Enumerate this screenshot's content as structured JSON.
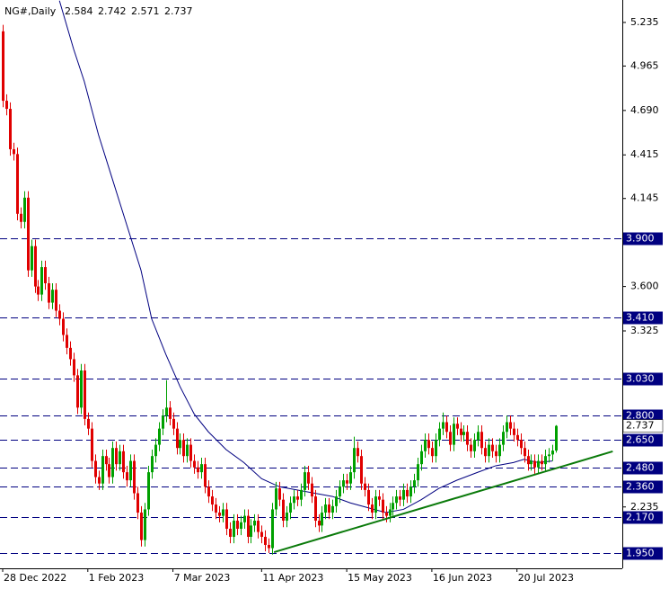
{
  "chart_data": {
    "type": "candlestick",
    "title": "NG#,Daily",
    "xlim": [
      -0.76,
      174.7
    ],
    "ylim": [
      1.855,
      5.374
    ],
    "xticks": [
      {
        "value": 0,
        "label": "28 Dec 2022"
      },
      {
        "value": 24,
        "label": "1 Feb 2023"
      },
      {
        "value": 48,
        "label": "7 Mar 2023"
      },
      {
        "value": 73,
        "label": "11 Apr 2023"
      },
      {
        "value": 97,
        "label": "15 May 2023"
      },
      {
        "value": 121,
        "label": "16 Jun 2023"
      },
      {
        "value": 145,
        "label": "20 Jul 2023"
      }
    ],
    "yticks": [
      5.235,
      4.965,
      {
        "value": 4.69,
        "label": "4.690"
      },
      4.415,
      4.145,
      {
        "value": 3.6,
        "label": "3.600"
      },
      3.325,
      2.235
    ],
    "up_color": "#00a000",
    "down_color": "#e00000",
    "open": [
      5.18,
      4.75,
      4.7,
      4.45,
      4.42,
      4.05,
      4.0,
      4.15,
      3.7,
      3.85,
      3.6,
      3.55,
      3.72,
      3.62,
      3.5,
      3.58,
      3.45,
      3.4,
      3.3,
      3.22,
      3.15,
      3.05,
      2.85,
      3.08,
      2.78,
      2.72,
      2.52,
      2.42,
      2.38,
      2.55,
      2.5,
      2.42,
      2.6,
      2.5,
      2.58,
      2.45,
      2.4,
      2.52,
      2.32,
      2.2,
      2.03,
      2.22,
      2.45,
      2.55,
      2.62,
      2.72,
      2.8,
      2.85,
      2.78,
      2.72,
      2.6,
      2.65,
      2.55,
      2.62,
      2.52,
      2.48,
      2.45,
      2.5,
      2.36,
      2.3,
      2.25,
      2.2,
      2.18,
      2.22,
      2.1,
      2.05,
      2.15,
      2.1,
      2.14,
      2.18,
      2.05,
      2.12,
      2.15,
      2.08,
      2.05,
      2.0,
      1.98,
      2.22,
      2.35,
      2.28,
      2.15,
      2.2,
      2.26,
      2.3,
      2.28,
      2.34,
      2.45,
      2.38,
      2.3,
      2.15,
      2.12,
      2.2,
      2.25,
      2.2,
      2.24,
      2.3,
      2.36,
      2.4,
      2.38,
      2.45,
      2.6,
      2.55,
      2.38,
      2.34,
      2.25,
      2.2,
      2.3,
      2.28,
      2.2,
      2.18,
      2.22,
      2.26,
      2.3,
      2.28,
      2.34,
      2.3,
      2.36,
      2.4,
      2.5,
      2.58,
      2.65,
      2.6,
      2.55,
      2.65,
      2.72,
      2.76,
      2.7,
      2.62,
      2.75,
      2.72,
      2.68,
      2.7,
      2.62,
      2.58,
      2.65,
      2.7,
      2.6,
      2.55,
      2.62,
      2.58,
      2.55,
      2.62,
      2.7,
      2.76,
      2.72,
      2.68,
      2.65,
      2.6,
      2.55,
      2.5,
      2.52,
      2.48,
      2.52,
      2.5,
      2.55,
      2.56,
      2.584
    ],
    "high": [
      5.22,
      4.79,
      4.74,
      4.49,
      4.46,
      4.09,
      4.19,
      4.19,
      3.89,
      3.89,
      3.64,
      3.76,
      3.76,
      3.66,
      3.62,
      3.62,
      3.49,
      3.44,
      3.34,
      3.26,
      3.19,
      3.09,
      3.12,
      3.12,
      2.82,
      2.76,
      2.56,
      2.46,
      2.59,
      2.59,
      2.54,
      2.64,
      2.64,
      2.62,
      2.62,
      2.49,
      2.56,
      2.56,
      2.36,
      2.24,
      2.26,
      2.49,
      2.59,
      2.66,
      2.76,
      2.84,
      3.02,
      2.89,
      2.82,
      2.76,
      2.69,
      2.69,
      2.66,
      2.66,
      2.56,
      2.52,
      2.54,
      2.54,
      2.4,
      2.34,
      2.29,
      2.24,
      2.26,
      2.26,
      2.14,
      2.19,
      2.19,
      2.18,
      2.22,
      2.22,
      2.16,
      2.19,
      2.19,
      2.12,
      2.09,
      2.04,
      2.26,
      2.39,
      2.39,
      2.32,
      2.24,
      2.3,
      2.34,
      2.34,
      2.38,
      2.49,
      2.49,
      2.42,
      2.34,
      2.19,
      2.24,
      2.29,
      2.29,
      2.28,
      2.34,
      2.4,
      2.44,
      2.44,
      2.49,
      2.67,
      2.64,
      2.59,
      2.42,
      2.38,
      2.29,
      2.34,
      2.34,
      2.32,
      2.24,
      2.26,
      2.3,
      2.34,
      2.34,
      2.38,
      2.38,
      2.4,
      2.44,
      2.54,
      2.62,
      2.69,
      2.69,
      2.64,
      2.69,
      2.76,
      2.82,
      2.8,
      2.74,
      2.79,
      2.79,
      2.76,
      2.74,
      2.74,
      2.66,
      2.69,
      2.74,
      2.74,
      2.64,
      2.66,
      2.66,
      2.62,
      2.66,
      2.74,
      2.8,
      2.8,
      2.76,
      2.72,
      2.69,
      2.64,
      2.59,
      2.56,
      2.56,
      2.56,
      2.56,
      2.59,
      2.6,
      2.62,
      2.742
    ],
    "low": [
      4.71,
      4.66,
      4.41,
      4.38,
      4.01,
      3.96,
      3.96,
      3.66,
      3.66,
      3.56,
      3.51,
      3.51,
      3.58,
      3.46,
      3.46,
      3.41,
      3.36,
      3.26,
      3.18,
      3.11,
      3.01,
      2.81,
      2.81,
      2.74,
      2.68,
      2.48,
      2.38,
      2.34,
      2.34,
      2.46,
      2.38,
      2.38,
      2.46,
      2.46,
      2.41,
      2.36,
      2.36,
      2.28,
      2.16,
      1.99,
      1.99,
      2.18,
      2.41,
      2.51,
      2.58,
      2.68,
      2.76,
      2.74,
      2.68,
      2.56,
      2.56,
      2.51,
      2.51,
      2.48,
      2.44,
      2.41,
      2.41,
      2.32,
      2.26,
      2.21,
      2.16,
      2.14,
      2.14,
      2.06,
      2.01,
      2.01,
      2.06,
      2.06,
      2.1,
      2.01,
      2.01,
      2.08,
      2.04,
      2.01,
      1.96,
      1.95,
      1.94,
      2.18,
      2.24,
      2.11,
      2.11,
      2.16,
      2.22,
      2.24,
      2.24,
      2.3,
      2.34,
      2.26,
      2.11,
      2.08,
      2.08,
      2.16,
      2.16,
      2.16,
      2.2,
      2.26,
      2.32,
      2.34,
      2.34,
      2.41,
      2.51,
      2.34,
      2.3,
      2.21,
      2.16,
      2.16,
      2.24,
      2.16,
      2.14,
      2.14,
      2.18,
      2.22,
      2.24,
      2.24,
      2.26,
      2.26,
      2.32,
      2.36,
      2.46,
      2.54,
      2.56,
      2.51,
      2.51,
      2.61,
      2.68,
      2.66,
      2.58,
      2.58,
      2.68,
      2.64,
      2.64,
      2.58,
      2.54,
      2.54,
      2.61,
      2.56,
      2.51,
      2.51,
      2.54,
      2.51,
      2.51,
      2.58,
      2.66,
      2.68,
      2.64,
      2.61,
      2.56,
      2.51,
      2.46,
      2.46,
      2.44,
      2.44,
      2.46,
      2.46,
      2.51,
      2.52,
      2.571
    ],
    "close": [
      4.75,
      4.7,
      4.45,
      4.42,
      4.05,
      4.0,
      4.15,
      3.7,
      3.85,
      3.6,
      3.55,
      3.72,
      3.62,
      3.5,
      3.58,
      3.45,
      3.4,
      3.3,
      3.22,
      3.15,
      3.05,
      2.85,
      3.08,
      2.78,
      2.72,
      2.52,
      2.42,
      2.38,
      2.55,
      2.5,
      2.42,
      2.6,
      2.5,
      2.58,
      2.45,
      2.4,
      2.52,
      2.32,
      2.2,
      2.03,
      2.22,
      2.45,
      2.55,
      2.62,
      2.72,
      2.8,
      2.85,
      2.78,
      2.72,
      2.6,
      2.65,
      2.55,
      2.62,
      2.52,
      2.48,
      2.45,
      2.5,
      2.36,
      2.3,
      2.25,
      2.2,
      2.18,
      2.22,
      2.1,
      2.05,
      2.15,
      2.1,
      2.14,
      2.18,
      2.05,
      2.12,
      2.15,
      2.08,
      2.05,
      2.0,
      1.98,
      2.22,
      2.35,
      2.28,
      2.15,
      2.2,
      2.26,
      2.3,
      2.28,
      2.34,
      2.45,
      2.38,
      2.3,
      2.15,
      2.12,
      2.2,
      2.25,
      2.2,
      2.24,
      2.3,
      2.36,
      2.4,
      2.38,
      2.45,
      2.6,
      2.55,
      2.38,
      2.34,
      2.25,
      2.2,
      2.3,
      2.28,
      2.2,
      2.18,
      2.22,
      2.26,
      2.3,
      2.28,
      2.34,
      2.3,
      2.36,
      2.4,
      2.5,
      2.58,
      2.65,
      2.6,
      2.55,
      2.65,
      2.72,
      2.76,
      2.7,
      2.62,
      2.75,
      2.72,
      2.68,
      2.7,
      2.62,
      2.58,
      2.65,
      2.7,
      2.6,
      2.55,
      2.62,
      2.58,
      2.55,
      2.62,
      2.7,
      2.76,
      2.72,
      2.68,
      2.65,
      2.6,
      2.55,
      2.5,
      2.52,
      2.48,
      2.52,
      2.5,
      2.55,
      2.56,
      2.584,
      2.737
    ],
    "moving_average": {
      "color": "#000080",
      "x": [
        16,
        20,
        23,
        27,
        31,
        35,
        39,
        42,
        46,
        50,
        54,
        58,
        63,
        68,
        73,
        78,
        83,
        88,
        93,
        98,
        103,
        108,
        113,
        118,
        123,
        128,
        134,
        139,
        144,
        147,
        151,
        155
      ],
      "values": [
        5.37,
        5.07,
        4.87,
        4.54,
        4.26,
        3.98,
        3.7,
        3.4,
        3.18,
        2.98,
        2.81,
        2.7,
        2.59,
        2.51,
        2.41,
        2.36,
        2.34,
        2.32,
        2.3,
        2.26,
        2.23,
        2.2,
        2.22,
        2.28,
        2.35,
        2.4,
        2.45,
        2.49,
        2.51,
        2.53,
        2.51,
        2.52
      ]
    },
    "trendline": {
      "color": "#0a7a0a",
      "x": [
        76.5,
        172
      ],
      "values": [
        1.955,
        2.579
      ]
    },
    "level_color": "#000080",
    "levels": [
      {
        "value": 3.9,
        "label": "3.900"
      },
      {
        "value": 3.41,
        "label": "3.410"
      },
      {
        "value": 3.03,
        "label": "3.030"
      },
      {
        "value": 2.8,
        "label": "2.800"
      },
      {
        "value": 2.65,
        "label": "2.650"
      },
      {
        "value": 2.48,
        "label": "2.480"
      },
      {
        "value": 2.36,
        "label": "2.360"
      },
      {
        "value": 2.17,
        "label": "2.170"
      },
      {
        "value": 1.95,
        "label": "1.950"
      }
    ]
  }
}
